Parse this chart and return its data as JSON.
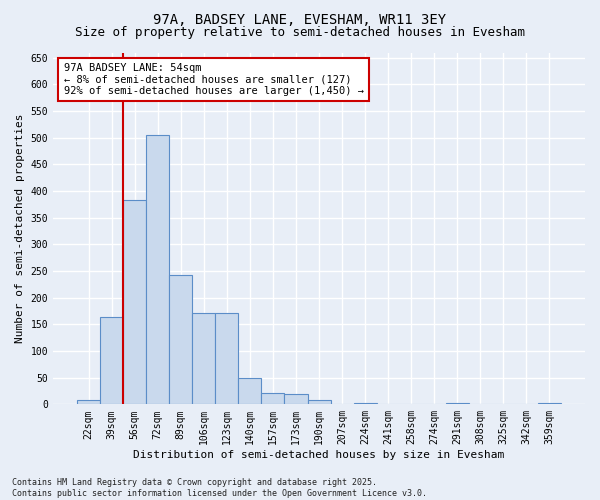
{
  "title_line1": "97A, BADSEY LANE, EVESHAM, WR11 3EY",
  "title_line2": "Size of property relative to semi-detached houses in Evesham",
  "xlabel": "Distribution of semi-detached houses by size in Evesham",
  "ylabel": "Number of semi-detached properties",
  "categories": [
    "22sqm",
    "39sqm",
    "56sqm",
    "72sqm",
    "89sqm",
    "106sqm",
    "123sqm",
    "140sqm",
    "157sqm",
    "173sqm",
    "190sqm",
    "207sqm",
    "224sqm",
    "241sqm",
    "258sqm",
    "274sqm",
    "291sqm",
    "308sqm",
    "325sqm",
    "342sqm",
    "359sqm"
  ],
  "values": [
    8,
    163,
    383,
    505,
    242,
    172,
    172,
    50,
    22,
    20,
    8,
    0,
    3,
    0,
    0,
    0,
    3,
    0,
    0,
    0,
    3
  ],
  "bar_color": "#c9d9ed",
  "bar_edge_color": "#5b8dc8",
  "vline_color": "#cc0000",
  "annotation_text": "97A BADSEY LANE: 54sqm\n← 8% of semi-detached houses are smaller (127)\n92% of semi-detached houses are larger (1,450) →",
  "annotation_box_color": "#ffffff",
  "annotation_box_edge_color": "#cc0000",
  "ylim": [
    0,
    660
  ],
  "yticks": [
    0,
    50,
    100,
    150,
    200,
    250,
    300,
    350,
    400,
    450,
    500,
    550,
    600,
    650
  ],
  "bg_color": "#e8eef7",
  "plot_bg_color": "#e8eef7",
  "grid_color": "#ffffff",
  "footer_text": "Contains HM Land Registry data © Crown copyright and database right 2025.\nContains public sector information licensed under the Open Government Licence v3.0.",
  "title_fontsize": 10,
  "subtitle_fontsize": 9,
  "tick_fontsize": 7,
  "label_fontsize": 8,
  "annotation_fontsize": 7.5,
  "footer_fontsize": 6
}
